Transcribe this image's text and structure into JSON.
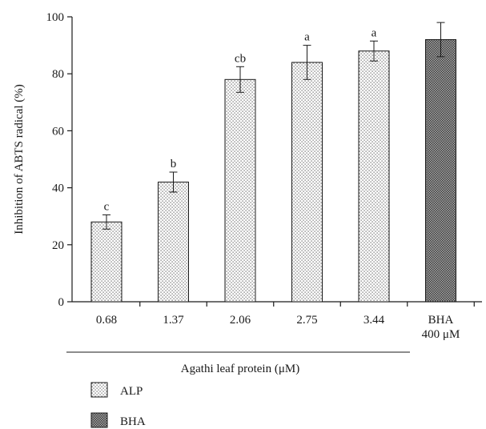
{
  "chart_data": {
    "type": "bar",
    "ylabel": "Inhibition of ABTS radical (%)",
    "ylim": [
      0,
      100
    ],
    "yticks": [
      0,
      20,
      40,
      60,
      80,
      100
    ],
    "group_label": "Agathi leaf protein (μM)",
    "categories": [
      {
        "label": "0.68",
        "label2": ""
      },
      {
        "label": "1.37",
        "label2": ""
      },
      {
        "label": "2.06",
        "label2": ""
      },
      {
        "label": "2.75",
        "label2": ""
      },
      {
        "label": "3.44",
        "label2": ""
      },
      {
        "label": "BHA",
        "label2": "400 μM"
      }
    ],
    "values": [
      28,
      42,
      78,
      84,
      88,
      92
    ],
    "error": [
      2.5,
      3.5,
      4.5,
      6,
      3.5,
      6
    ],
    "letters": [
      "c",
      "b",
      "cb",
      "a",
      "a",
      ""
    ],
    "series_key": [
      0,
      0,
      0,
      0,
      0,
      1
    ],
    "legend": [
      {
        "name": "ALP",
        "pattern": "dots"
      },
      {
        "name": "BHA",
        "pattern": "dense"
      }
    ],
    "colors": {
      "ink": "#1a1a1a",
      "dot": "#5a5a5a",
      "dense_bg": "#9a9a9a"
    },
    "grid": false,
    "legend_position": "bottom-left"
  }
}
